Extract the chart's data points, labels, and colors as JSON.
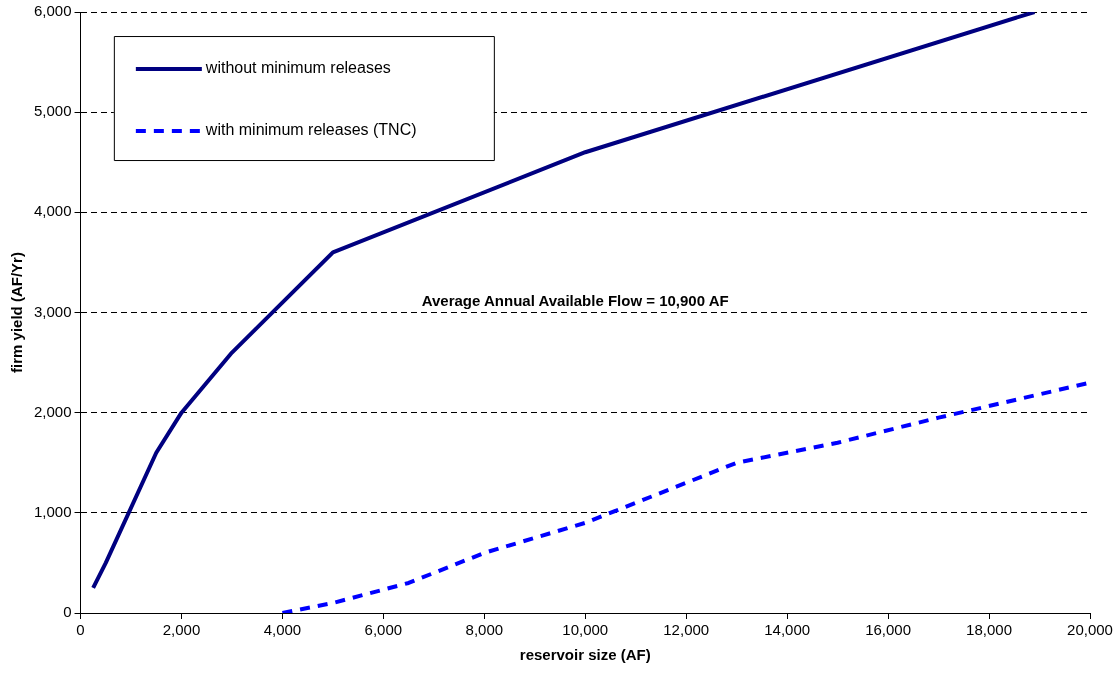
{
  "chart_data": {
    "type": "line",
    "xlabel": "reservoir size (AF)",
    "ylabel": "firm yield (AF/Yr)",
    "xlim": [
      0,
      20000
    ],
    "xticks": [
      0,
      {
        "value": 2000,
        "label": "2,000"
      },
      {
        "value": 4000,
        "label": "4,000"
      },
      {
        "value": 6000,
        "label": "6,000"
      },
      {
        "value": 8000,
        "label": "8,000"
      },
      {
        "value": 10000,
        "label": "10,000"
      },
      {
        "value": 12000,
        "label": "12,000"
      },
      {
        "value": 14000,
        "label": "14,000"
      },
      {
        "value": 16000,
        "label": "16,000"
      },
      {
        "value": 18000,
        "label": "18,000"
      },
      {
        "value": 20000,
        "label": "20,000"
      }
    ],
    "ylim": [
      0,
      6000
    ],
    "yticks": [
      0,
      {
        "value": 1000,
        "label": "1,000"
      },
      {
        "value": 2000,
        "label": "2,000"
      },
      {
        "value": 3000,
        "label": "3,000"
      },
      {
        "value": 4000,
        "label": "4,000"
      },
      {
        "value": 5000,
        "label": "5,000"
      },
      {
        "value": 6000,
        "label": "6,000"
      }
    ],
    "grid": "y",
    "legend": "top left",
    "marker": "none",
    "annotations": [
      "Average Annual Available Flow = 10,900 AF"
    ],
    "series": [
      {
        "name": "without minimum releases",
        "color": "#000080",
        "line_style": "solid",
        "x": [
          250,
          500,
          1500,
          2000,
          3000,
          5000,
          10000,
          18900
        ],
        "values": [
          250,
          500,
          1600,
          2000,
          2600,
          3600,
          4600,
          6000
        ]
      },
      {
        "name": "with minimum releases (TNC)",
        "color": "#0000ff",
        "line_style": "dashed",
        "x": [
          4000,
          5000,
          6500,
          8000,
          10000,
          12000,
          13000,
          15000,
          17000,
          20000
        ],
        "values": [
          0,
          100,
          300,
          600,
          900,
          1300,
          1500,
          1700,
          1950,
          2300
        ]
      }
    ]
  }
}
